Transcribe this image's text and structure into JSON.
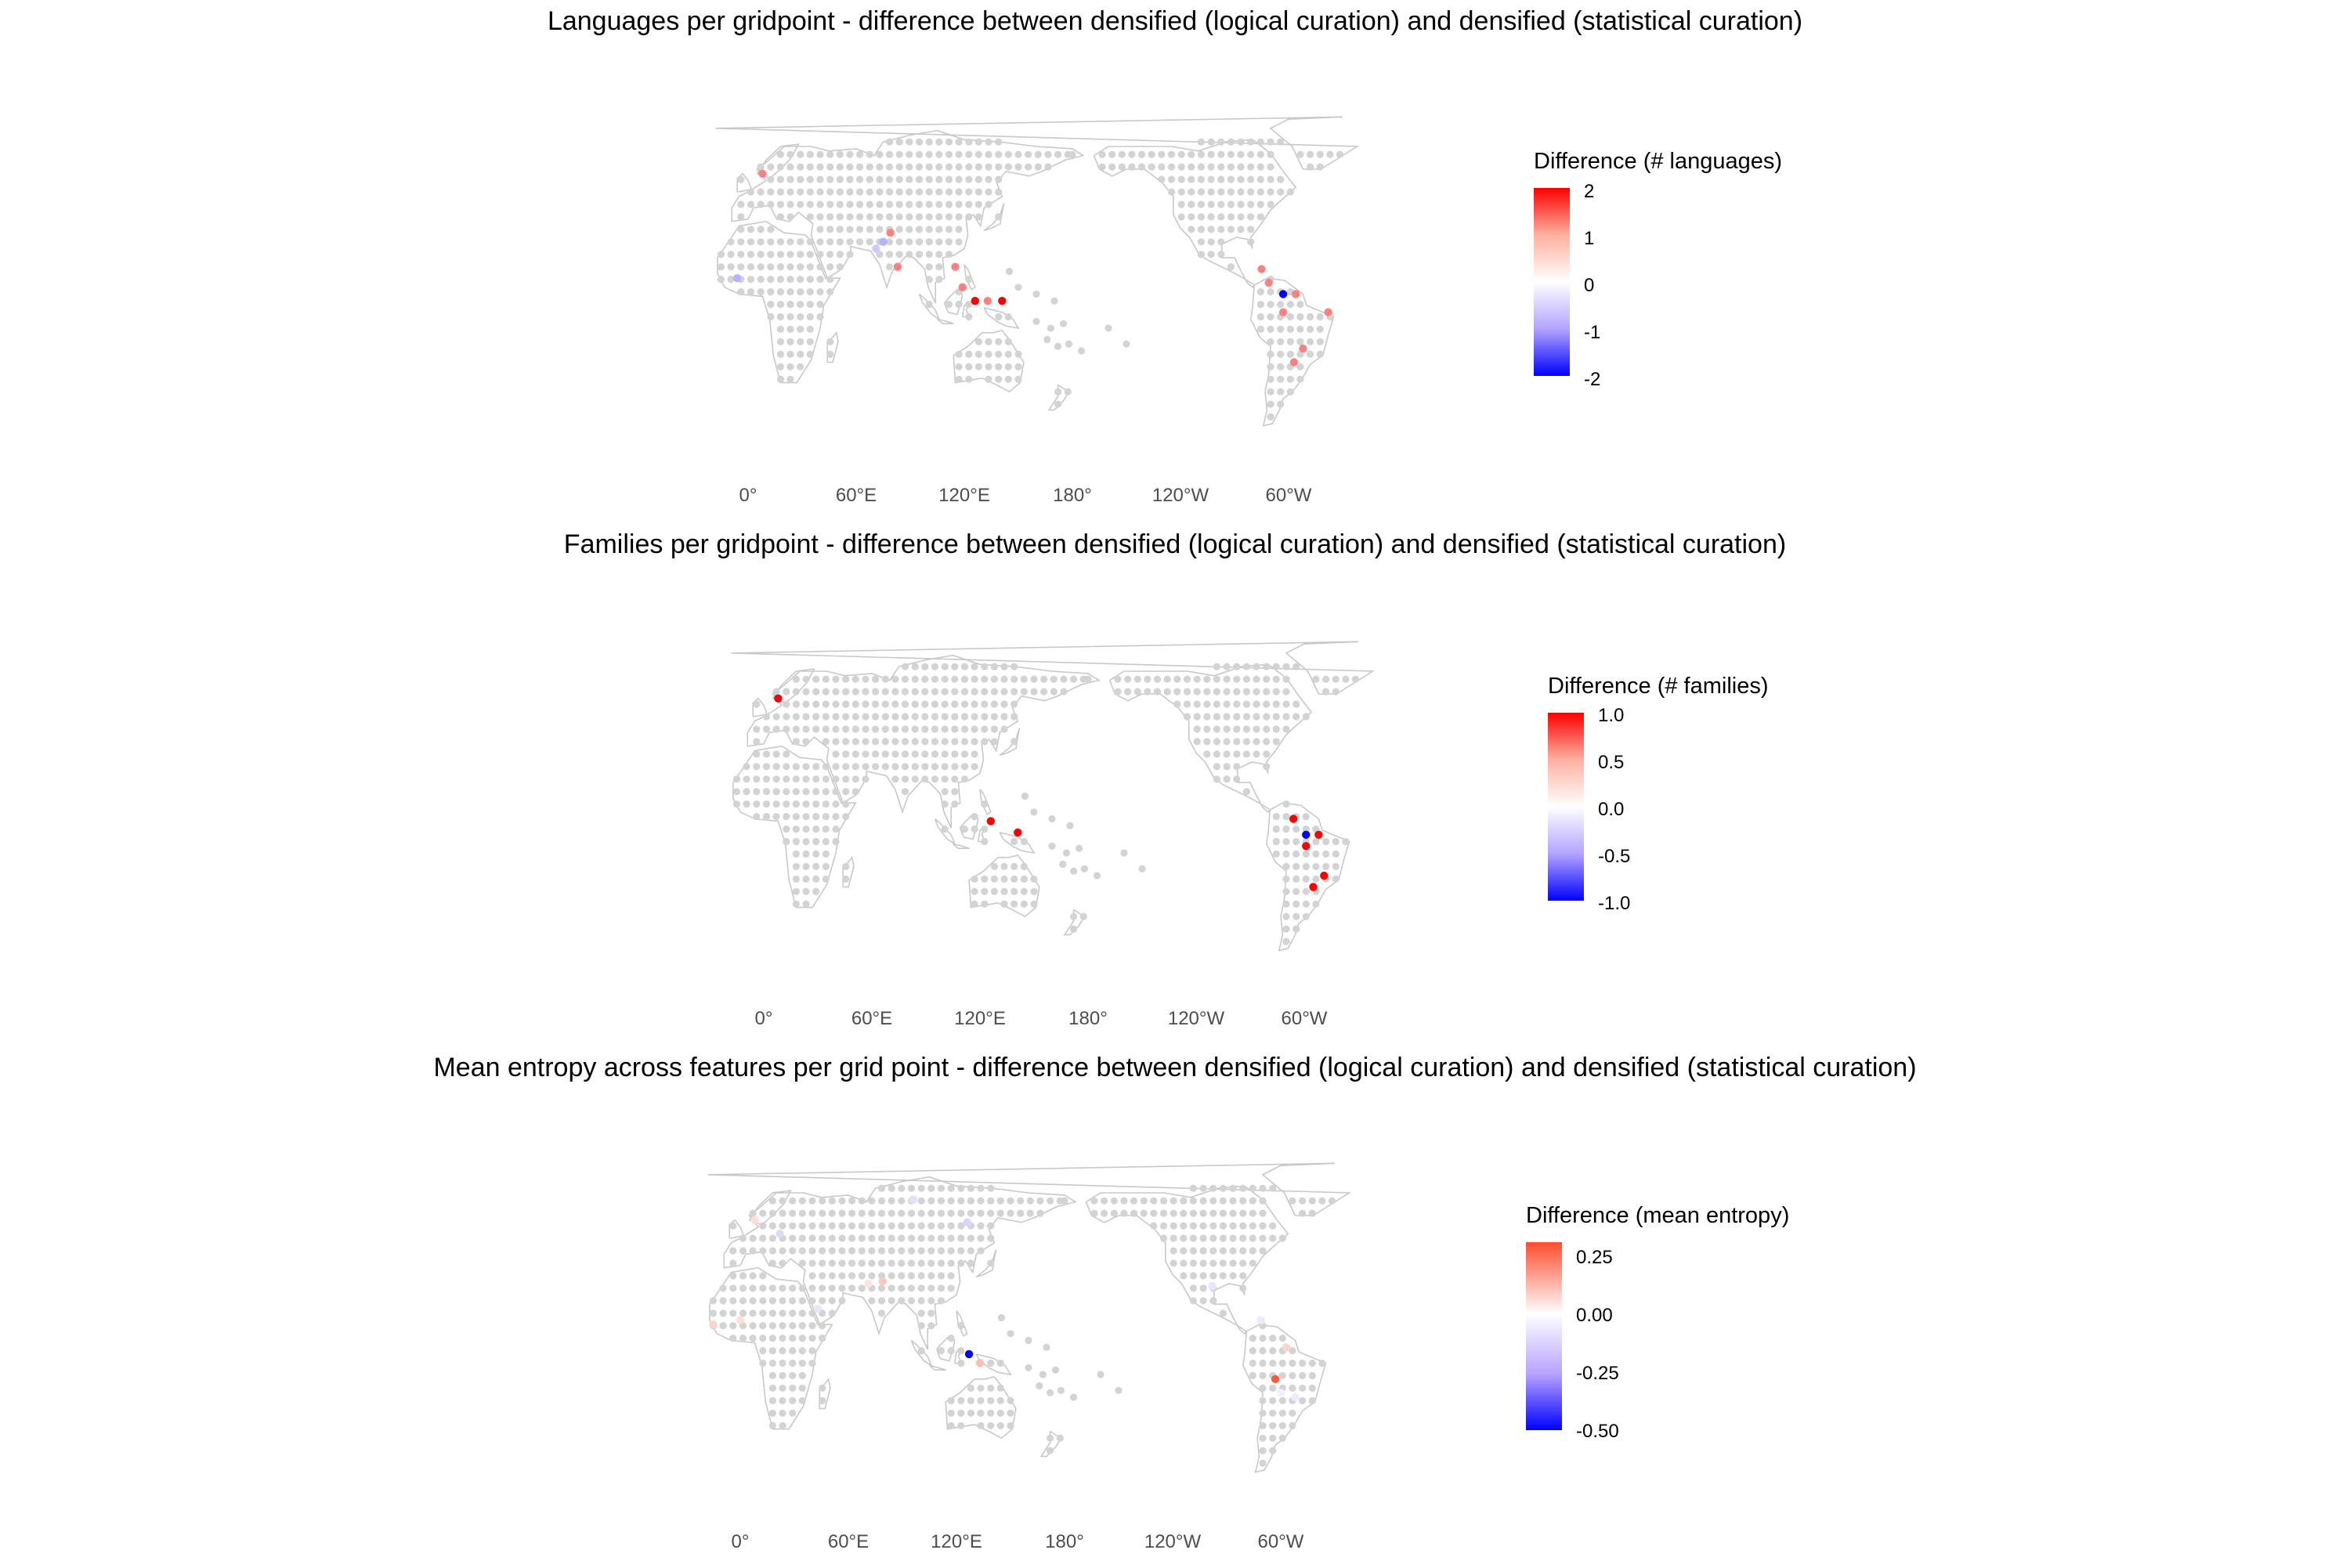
{
  "chart_data": [
    {
      "type": "map",
      "title": "Languages per gridpoint - difference between densified (logical curation) and densified (statistical curation)",
      "x_tick_labels": [
        "0°",
        "60°E",
        "120°E",
        "180°",
        "120°W",
        "60°W"
      ],
      "background_points": "grey gridpoints with no difference",
      "legend": {
        "title": "Difference (# languages)",
        "ticks": [
          "2",
          "1",
          "0",
          "-1",
          "-2"
        ],
        "range": [
          -2,
          2
        ],
        "colors": {
          "high": "#ff0000",
          "mid": "#ffffff",
          "low": "#0000ff"
        }
      },
      "highlighted_points": [
        {
          "lon": 8,
          "lat": 58,
          "value": 1
        },
        {
          "lon": -6,
          "lat": 12,
          "value": -0.6
        },
        {
          "lon": 79,
          "lat": 32,
          "value": 1
        },
        {
          "lon": 75,
          "lat": 28,
          "value": -0.6
        },
        {
          "lon": 71,
          "lat": 25,
          "value": -0.4
        },
        {
          "lon": 83,
          "lat": 17,
          "value": 1
        },
        {
          "lon": 115,
          "lat": 17,
          "value": 1
        },
        {
          "lon": 119,
          "lat": 8,
          "value": 1
        },
        {
          "lon": 126,
          "lat": 2,
          "value": 2
        },
        {
          "lon": 133,
          "lat": 2,
          "value": 1
        },
        {
          "lon": 141,
          "lat": 2,
          "value": 2
        },
        {
          "lon": -75,
          "lat": 16,
          "value": 1
        },
        {
          "lon": -71,
          "lat": 10,
          "value": 1
        },
        {
          "lon": -63,
          "lat": 5,
          "value": -2
        },
        {
          "lon": -56,
          "lat": 5,
          "value": 1
        },
        {
          "lon": -63,
          "lat": -3,
          "value": 1
        },
        {
          "lon": -38,
          "lat": -3,
          "value": 1
        },
        {
          "lon": -52,
          "lat": -19,
          "value": 1
        },
        {
          "lon": -57,
          "lat": -25,
          "value": 1
        }
      ]
    },
    {
      "type": "map",
      "title": "Families per gridpoint - difference between densified (logical curation) and densified (statistical curation)",
      "x_tick_labels": [
        "0°",
        "60°E",
        "120°E",
        "180°",
        "120°W",
        "60°W"
      ],
      "background_points": "grey gridpoints with no difference",
      "legend": {
        "title": "Difference (# families)",
        "ticks": [
          "1.0",
          "0.5",
          "0.0",
          "-0.5",
          "-1.0"
        ],
        "range": [
          -1,
          1
        ],
        "colors": {
          "high": "#ff0000",
          "mid": "#ffffff",
          "low": "#0000ff"
        }
      },
      "highlighted_points": [
        {
          "lon": 8,
          "lat": 58,
          "value": 1
        },
        {
          "lon": 126,
          "lat": 4,
          "value": 1
        },
        {
          "lon": 141,
          "lat": -1,
          "value": 1
        },
        {
          "lon": -66,
          "lat": 5,
          "value": 1
        },
        {
          "lon": -59,
          "lat": -2,
          "value": -1
        },
        {
          "lon": -52,
          "lat": -2,
          "value": 1
        },
        {
          "lon": -59,
          "lat": -7,
          "value": 1
        },
        {
          "lon": -49,
          "lat": -20,
          "value": 1
        },
        {
          "lon": -55,
          "lat": -25,
          "value": 1
        }
      ]
    },
    {
      "type": "map",
      "title": "Mean entropy across features per grid point - difference between densified (logical curation) and densified (statistical curation)",
      "x_tick_labels": [
        "0°",
        "60°E",
        "120°E",
        "180°",
        "120°W",
        "60°W"
      ],
      "background_points": "grey gridpoints with no difference",
      "legend": {
        "title": "Difference (mean entropy)",
        "ticks": [
          "0.25",
          "0.00",
          "-0.25",
          "-0.50"
        ],
        "range": [
          -0.5,
          0.32
        ],
        "colors": {
          "high": "#ff4d2e",
          "mid": "#ffffff",
          "low": "#0000ff"
        }
      },
      "highlighted_points": [
        {
          "lon": 127,
          "lat": -1,
          "value": -0.5
        },
        {
          "lon": 133,
          "lat": -5,
          "value": 0.12
        },
        {
          "lon": -63,
          "lat": -12,
          "value": 0.3
        },
        {
          "lon": -57,
          "lat": 2,
          "value": 0.08
        },
        {
          "lon": -71,
          "lat": 14,
          "value": -0.04
        },
        {
          "lon": -15,
          "lat": 12,
          "value": 0.08
        },
        {
          "lon": 0,
          "lat": 14,
          "value": 0.06
        },
        {
          "lon": 8,
          "lat": 58,
          "value": 0.06
        },
        {
          "lon": 79,
          "lat": 31,
          "value": 0.1
        },
        {
          "lon": 71,
          "lat": 30,
          "value": 0.05
        },
        {
          "lon": 126,
          "lat": 57,
          "value": -0.08
        },
        {
          "lon": 43,
          "lat": 19,
          "value": -0.05
        },
        {
          "lon": 96,
          "lat": 67,
          "value": -0.06
        },
        {
          "lon": 22,
          "lat": 52,
          "value": -0.07
        },
        {
          "lon": -52,
          "lat": -20,
          "value": -0.04
        },
        {
          "lon": -60,
          "lat": -18,
          "value": -0.03
        },
        {
          "lon": -98,
          "lat": 29,
          "value": -0.05
        }
      ]
    }
  ]
}
